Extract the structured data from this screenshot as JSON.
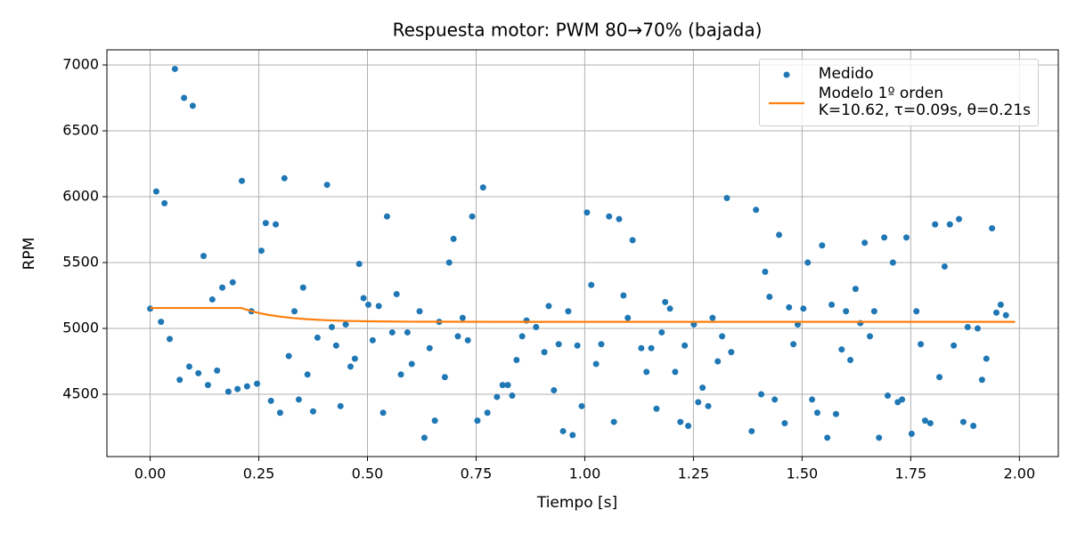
{
  "chart_data": {
    "type": "scatter",
    "title": "Respuesta motor: PWM 80→70% (bajada)",
    "x_label": "Tiempo [s]",
    "y_label": "RPM",
    "xlim": [
      -0.0995,
      2.0895
    ],
    "ylim": [
      4027,
      7115
    ],
    "xticks": [
      {
        "value": 0,
        "label": "0.00"
      },
      {
        "value": 0.25,
        "label": "0.25"
      },
      {
        "value": 0.5,
        "label": "0.50"
      },
      {
        "value": 0.75,
        "label": "0.75"
      },
      {
        "value": 1,
        "label": "1.00"
      },
      {
        "value": 1.25,
        "label": "1.25"
      },
      {
        "value": 1.5,
        "label": "1.50"
      },
      {
        "value": 1.75,
        "label": "1.75"
      },
      {
        "value": 2,
        "label": "2.00"
      }
    ],
    "yticks": [
      4500,
      5000,
      5500,
      6000,
      6500,
      7000
    ],
    "grid": true,
    "legend": "upper right",
    "series": [
      {
        "name": "Medido",
        "type": "scatter",
        "color": "#1f77b4",
        "x": [
          0,
          0.014,
          0.025,
          0.033,
          0.045,
          0.057,
          0.068,
          0.078,
          0.09,
          0.098,
          0.111,
          0.123,
          0.133,
          0.143,
          0.154,
          0.166,
          0.18,
          0.19,
          0.201,
          0.211,
          0.223,
          0.233,
          0.246,
          0.256,
          0.266,
          0.278,
          0.289,
          0.299,
          0.309,
          0.319,
          0.332,
          0.342,
          0.352,
          0.362,
          0.375,
          0.385,
          0.407,
          0.418,
          0.428,
          0.438,
          0.45,
          0.461,
          0.471,
          0.481,
          0.491,
          0.502,
          0.512,
          0.526,
          0.536,
          0.545,
          0.557,
          0.567,
          0.577,
          0.592,
          0.602,
          0.62,
          0.631,
          0.643,
          0.655,
          0.665,
          0.678,
          0.688,
          0.698,
          0.708,
          0.719,
          0.731,
          0.741,
          0.753,
          0.766,
          0.776,
          0.798,
          0.811,
          0.823,
          0.833,
          0.843,
          0.856,
          0.866,
          0.888,
          0.907,
          0.917,
          0.929,
          0.94,
          0.95,
          0.962,
          0.972,
          0.983,
          0.993,
          1.005,
          1.015,
          1.026,
          1.038,
          1.056,
          1.067,
          1.079,
          1.089,
          1.099,
          1.11,
          1.13,
          1.142,
          1.153,
          1.165,
          1.177,
          1.185,
          1.196,
          1.208,
          1.22,
          1.23,
          1.238,
          1.251,
          1.261,
          1.271,
          1.284,
          1.294,
          1.306,
          1.316,
          1.327,
          1.337,
          1.384,
          1.394,
          1.406,
          1.415,
          1.425,
          1.437,
          1.447,
          1.46,
          1.47,
          1.48,
          1.49,
          1.503,
          1.513,
          1.523,
          1.535,
          1.546,
          1.558,
          1.568,
          1.578,
          1.591,
          1.601,
          1.611,
          1.623,
          1.634,
          1.644,
          1.656,
          1.666,
          1.677,
          1.689,
          1.697,
          1.709,
          1.72,
          1.73,
          1.74,
          1.752,
          1.763,
          1.773,
          1.783,
          1.795,
          1.806,
          1.816,
          1.828,
          1.84,
          1.849,
          1.861,
          1.871,
          1.881,
          1.894,
          1.904,
          1.914,
          1.924,
          1.937,
          1.947,
          1.957,
          1.969
        ],
        "values": [
          5150,
          6040,
          5050,
          5950,
          4920,
          6970,
          4610,
          6750,
          4710,
          6690,
          4660,
          5550,
          4570,
          5220,
          4680,
          5310,
          4520,
          5350,
          4540,
          6120,
          4560,
          5130,
          4580,
          5590,
          5800,
          4450,
          5790,
          4360,
          6140,
          4790,
          5130,
          4460,
          5310,
          4650,
          4370,
          4930,
          6090,
          5010,
          4870,
          4410,
          5030,
          4710,
          4770,
          5490,
          5230,
          5180,
          4910,
          5170,
          4360,
          5850,
          4970,
          5260,
          4650,
          4970,
          4730,
          5130,
          4170,
          4850,
          4300,
          5050,
          4630,
          5500,
          5680,
          4940,
          5080,
          4910,
          5850,
          4300,
          6070,
          4360,
          4480,
          4570,
          4570,
          4490,
          4760,
          4940,
          5060,
          5010,
          4820,
          5170,
          4530,
          4880,
          4220,
          5130,
          4190,
          4870,
          4410,
          5880,
          5330,
          4730,
          4880,
          5850,
          4290,
          5830,
          5250,
          5080,
          5670,
          4850,
          4670,
          4850,
          4390,
          4970,
          5200,
          5150,
          4670,
          4290,
          4870,
          4260,
          5030,
          4440,
          4550,
          4410,
          5080,
          4750,
          4940,
          5990,
          4820,
          4220,
          5900,
          4500,
          5430,
          5240,
          4460,
          5710,
          4280,
          5160,
          4880,
          5030,
          5150,
          5500,
          4460,
          4360,
          5630,
          4170,
          5180,
          4350,
          4840,
          5130,
          4760,
          5300,
          5040,
          5650,
          4940,
          5130,
          4170,
          5690,
          4490,
          5500,
          4440,
          4460,
          5690,
          4200,
          5130,
          4880,
          4300,
          4280,
          5790,
          4630,
          5470,
          5790,
          4870,
          5830,
          4290,
          5010,
          4260,
          5000,
          4610,
          4770,
          5760,
          5120,
          5180,
          5100
        ]
      },
      {
        "name": "Modelo 1º orden\nK=10.62, τ=0.09s, θ=0.21s",
        "type": "line",
        "color": "#ff7f0e",
        "x": [
          0,
          0.21,
          0.23,
          0.25,
          0.27,
          0.3,
          0.33,
          0.36,
          0.4,
          0.45,
          0.5,
          0.6,
          0.8,
          1.0,
          1.5,
          1.99
        ],
        "values": [
          5155,
          5155,
          5134,
          5117,
          5104,
          5089,
          5078,
          5070,
          5063,
          5057,
          5054,
          5051,
          5050,
          5050,
          5050,
          5050
        ]
      }
    ]
  }
}
